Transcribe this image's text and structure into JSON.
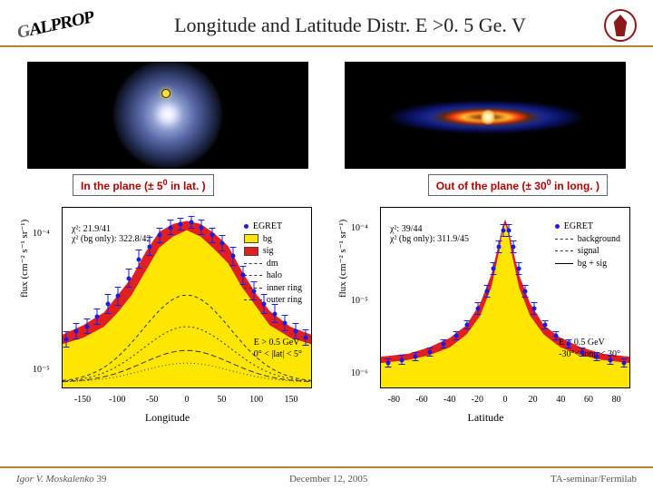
{
  "header": {
    "title": "Longitude and Latitude Distr. E >0. 5 Ge. V",
    "logo_text": "GALPROP"
  },
  "labels": {
    "in_plane": "In the plane (± 5",
    "in_plane_sup": "0",
    "in_plane_tail": " in lat. )",
    "out_plane": "Out of the plane (± 30",
    "out_plane_sup": "0",
    "out_plane_tail": " in long. )"
  },
  "footer": {
    "author": "Igor V. Moskalenko",
    "page": "39",
    "date": "December 12, 2005",
    "venue": "TA-seminar/Fermilab"
  },
  "colors": {
    "accent_rule": "#b08830",
    "label_text": "#b00000",
    "bg_fill": "#ffe600",
    "sig_fill": "#e02020",
    "egret_pt": "#1a1ae0",
    "seal": "#8a1a1a"
  },
  "left_chart": {
    "type": "area+scatter",
    "xlabel": "Longitude",
    "ylabel": "flux (cm⁻² s⁻¹ sr⁻¹)",
    "xlim": [
      -180,
      180
    ],
    "xticks": [
      -150,
      -100,
      -50,
      0,
      50,
      100,
      150
    ],
    "yticks_labels": [
      "10⁻⁵",
      "10⁻⁴"
    ],
    "yticks_pos": [
      0.9,
      0.15
    ],
    "chi2_lines": [
      "χ²:            21.9/41",
      "χ² (bg only): 322.8/42"
    ],
    "einfo": [
      "E > 0.5 GeV",
      "0° < |lat| < 5°"
    ],
    "legend": [
      {
        "marker": "pt",
        "label": "EGRET",
        "color": "#1a1ae0"
      },
      {
        "sw": "#ffe600",
        "label": "bg"
      },
      {
        "sw": "#e02020",
        "label": "sig"
      },
      {
        "dash": "2,2",
        "label": "dm"
      },
      {
        "dash": "4,2",
        "label": "halo"
      },
      {
        "dash": "6,3",
        "label": "inner ring"
      },
      {
        "dash": "1,3",
        "label": "outer ring"
      }
    ],
    "bg_points": [
      [
        -180,
        0.24
      ],
      [
        -150,
        0.28
      ],
      [
        -120,
        0.35
      ],
      [
        -100,
        0.44
      ],
      [
        -80,
        0.55
      ],
      [
        -60,
        0.7
      ],
      [
        -40,
        0.85
      ],
      [
        -20,
        0.92
      ],
      [
        0,
        0.96
      ],
      [
        20,
        0.92
      ],
      [
        40,
        0.84
      ],
      [
        60,
        0.75
      ],
      [
        80,
        0.6
      ],
      [
        100,
        0.48
      ],
      [
        120,
        0.36
      ],
      [
        150,
        0.28
      ],
      [
        180,
        0.24
      ]
    ],
    "sig_points": [
      [
        -180,
        0.3
      ],
      [
        -150,
        0.36
      ],
      [
        -120,
        0.44
      ],
      [
        -100,
        0.55
      ],
      [
        -80,
        0.66
      ],
      [
        -60,
        0.82
      ],
      [
        -40,
        0.95
      ],
      [
        -20,
        1.0
      ],
      [
        0,
        1.02
      ],
      [
        20,
        1.0
      ],
      [
        40,
        0.94
      ],
      [
        60,
        0.86
      ],
      [
        80,
        0.7
      ],
      [
        100,
        0.56
      ],
      [
        120,
        0.45
      ],
      [
        150,
        0.35
      ],
      [
        180,
        0.3
      ]
    ],
    "egret": [
      [
        -175,
        0.28,
        0.05
      ],
      [
        -160,
        0.33,
        0.05
      ],
      [
        -145,
        0.36,
        0.05
      ],
      [
        -130,
        0.42,
        0.05
      ],
      [
        -115,
        0.5,
        0.06
      ],
      [
        -100,
        0.55,
        0.06
      ],
      [
        -85,
        0.66,
        0.06
      ],
      [
        -70,
        0.78,
        0.06
      ],
      [
        -55,
        0.86,
        0.06
      ],
      [
        -40,
        0.93,
        0.05
      ],
      [
        -25,
        0.98,
        0.05
      ],
      [
        -10,
        1.0,
        0.04
      ],
      [
        5,
        1.01,
        0.04
      ],
      [
        20,
        0.98,
        0.05
      ],
      [
        35,
        0.93,
        0.05
      ],
      [
        50,
        0.88,
        0.05
      ],
      [
        65,
        0.8,
        0.06
      ],
      [
        80,
        0.68,
        0.06
      ],
      [
        95,
        0.58,
        0.06
      ],
      [
        110,
        0.5,
        0.06
      ],
      [
        125,
        0.44,
        0.06
      ],
      [
        140,
        0.38,
        0.05
      ],
      [
        155,
        0.33,
        0.05
      ],
      [
        170,
        0.29,
        0.05
      ]
    ]
  },
  "right_chart": {
    "type": "area+scatter",
    "xlabel": "Latitude",
    "ylabel": "flux (cm⁻² s⁻¹ sr⁻¹)",
    "xlim": [
      -90,
      90
    ],
    "xticks": [
      -80,
      -60,
      -40,
      -20,
      0,
      20,
      40,
      60,
      80
    ],
    "yticks_labels": [
      "10⁻⁶",
      "10⁻⁵",
      "10⁻⁴"
    ],
    "yticks_pos": [
      0.92,
      0.52,
      0.12
    ],
    "chi2_lines": [
      "χ²:            39/44",
      "χ² (bg only): 311.9/45"
    ],
    "einfo": [
      "E > 0.5 GeV",
      "-30°< long < 30°"
    ],
    "legend": [
      {
        "marker": "pt",
        "label": "EGRET",
        "color": "#1a1ae0"
      },
      {
        "dash": "4,2",
        "label": "background"
      },
      {
        "dash": "1,2",
        "label": "signal"
      },
      {
        "solid": true,
        "label": "bg + sig"
      }
    ],
    "bg_points": [
      [
        -90,
        0.12
      ],
      [
        -70,
        0.14
      ],
      [
        -55,
        0.17
      ],
      [
        -40,
        0.22
      ],
      [
        -28,
        0.3
      ],
      [
        -18,
        0.42
      ],
      [
        -10,
        0.6
      ],
      [
        -5,
        0.8
      ],
      [
        -2,
        0.95
      ],
      [
        0,
        1.0
      ],
      [
        2,
        0.95
      ],
      [
        5,
        0.8
      ],
      [
        10,
        0.6
      ],
      [
        18,
        0.42
      ],
      [
        28,
        0.3
      ],
      [
        40,
        0.22
      ],
      [
        55,
        0.17
      ],
      [
        70,
        0.14
      ],
      [
        90,
        0.12
      ]
    ],
    "sig_points": [
      [
        -90,
        0.16
      ],
      [
        -70,
        0.18
      ],
      [
        -55,
        0.22
      ],
      [
        -40,
        0.28
      ],
      [
        -28,
        0.36
      ],
      [
        -18,
        0.5
      ],
      [
        -10,
        0.68
      ],
      [
        -5,
        0.86
      ],
      [
        -2,
        0.98
      ],
      [
        0,
        1.03
      ],
      [
        2,
        0.98
      ],
      [
        5,
        0.86
      ],
      [
        10,
        0.68
      ],
      [
        18,
        0.5
      ],
      [
        28,
        0.36
      ],
      [
        40,
        0.28
      ],
      [
        55,
        0.22
      ],
      [
        70,
        0.18
      ],
      [
        90,
        0.16
      ]
    ],
    "egret": [
      [
        -85,
        0.13,
        0.03
      ],
      [
        -75,
        0.15,
        0.03
      ],
      [
        -65,
        0.17,
        0.03
      ],
      [
        -55,
        0.2,
        0.03
      ],
      [
        -45,
        0.25,
        0.03
      ],
      [
        -36,
        0.3,
        0.03
      ],
      [
        -28,
        0.37,
        0.03
      ],
      [
        -20,
        0.47,
        0.04
      ],
      [
        -14,
        0.58,
        0.04
      ],
      [
        -9,
        0.72,
        0.04
      ],
      [
        -5,
        0.86,
        0.04
      ],
      [
        -2,
        0.96,
        0.04
      ],
      [
        2,
        0.96,
        0.04
      ],
      [
        5,
        0.86,
        0.04
      ],
      [
        9,
        0.72,
        0.04
      ],
      [
        14,
        0.58,
        0.04
      ],
      [
        20,
        0.47,
        0.04
      ],
      [
        28,
        0.37,
        0.03
      ],
      [
        36,
        0.3,
        0.03
      ],
      [
        45,
        0.25,
        0.03
      ],
      [
        55,
        0.2,
        0.03
      ],
      [
        65,
        0.17,
        0.03
      ],
      [
        75,
        0.15,
        0.03
      ],
      [
        85,
        0.13,
        0.03
      ]
    ]
  }
}
